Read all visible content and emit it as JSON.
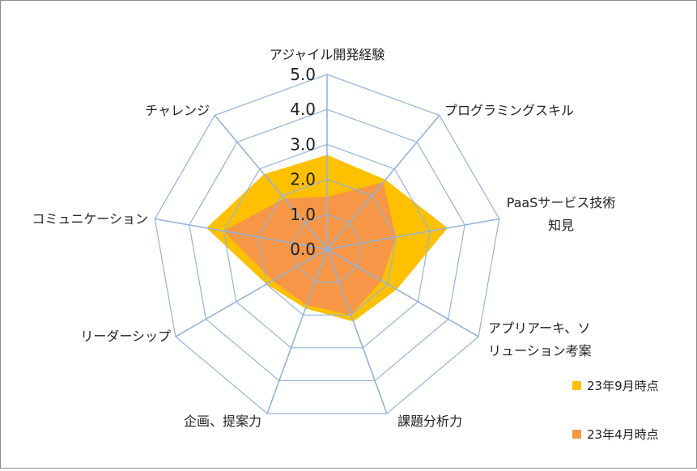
{
  "chart_data": {
    "type": "radar",
    "axes": [
      [
        "アジャイル開発経験"
      ],
      [
        "プログラミングスキル"
      ],
      [
        "PaaSサービス技術",
        "知見"
      ],
      [
        "アプリアーキ、ソ",
        "リューション考案"
      ],
      [
        "課題分析力"
      ],
      [
        "企画、提案力"
      ],
      [
        "リーダーシップ"
      ],
      [
        "コミュニケーション"
      ],
      [
        "チャレンジ"
      ]
    ],
    "ticks": [
      "0.0",
      "1.0",
      "2.0",
      "3.0",
      "4.0",
      "5.0"
    ],
    "rlim": [
      0,
      5
    ],
    "legend_position": "bottom-right",
    "series": [
      {
        "name": "23年9月時点",
        "color": "#FFC000",
        "values": [
          2.7,
          2.6,
          3.5,
          2.3,
          2.2,
          1.8,
          2.0,
          3.5,
          2.8
        ]
      },
      {
        "name": "23年4月時点",
        "color": "#F79646",
        "values": [
          1.5,
          2.5,
          2.0,
          1.8,
          2.0,
          1.7,
          1.8,
          3.0,
          1.9
        ]
      }
    ],
    "grid_color": "#95B3D7"
  }
}
